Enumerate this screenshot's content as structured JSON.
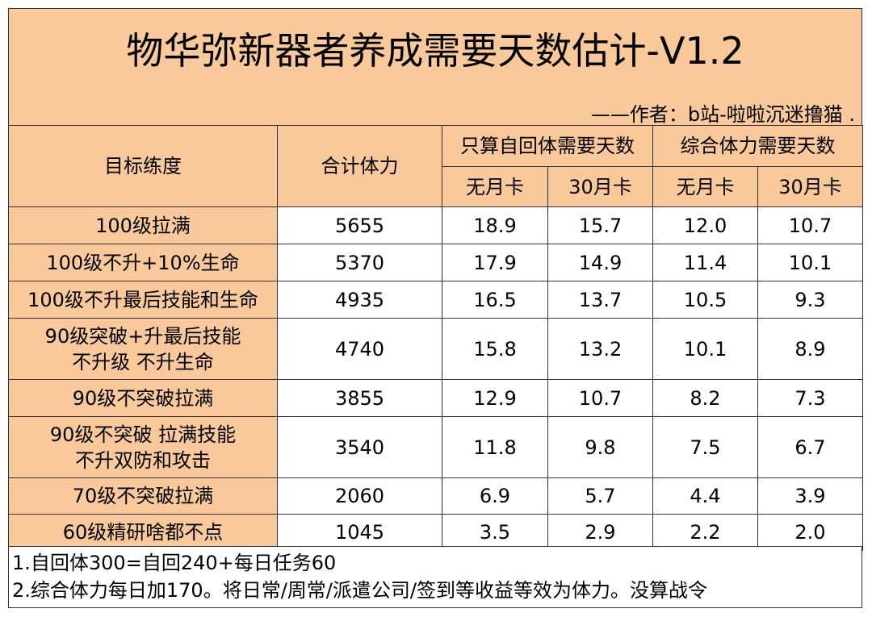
{
  "title": "物华弥新器者养成需要天数估计-V1.2",
  "author": "——作者：b站-啦啦沉迷撸猫 .",
  "colors": {
    "header_bg": "#f9c99b",
    "border": "#333333",
    "cell_bg": "#ffffff"
  },
  "header": {
    "target": "目标练度",
    "total": "合计体力",
    "group_self": "只算自回体需要天数",
    "group_combined": "综合体力需要天数",
    "no_card": "无月卡",
    "card_30": "30月卡"
  },
  "rows": [
    {
      "target": "100级拉满",
      "total": "5655",
      "self_no": "18.9",
      "self_30": "15.7",
      "comb_no": "12.0",
      "comb_30": "10.7"
    },
    {
      "target": "100级不升+10%生命",
      "total": "5370",
      "self_no": "17.9",
      "self_30": "14.9",
      "comb_no": "11.4",
      "comb_30": "10.1"
    },
    {
      "target": "100级不升最后技能和生命",
      "total": "4935",
      "self_no": "16.5",
      "self_30": "13.7",
      "comb_no": "10.5",
      "comb_30": "9.3"
    },
    {
      "target_line1": "90级突破+升最后技能",
      "target_line2": "不升级 不升生命",
      "total": "4740",
      "self_no": "15.8",
      "self_30": "13.2",
      "comb_no": "10.1",
      "comb_30": "8.9"
    },
    {
      "target": "90级不突破拉满",
      "total": "3855",
      "self_no": "12.9",
      "self_30": "10.7",
      "comb_no": "8.2",
      "comb_30": "7.3"
    },
    {
      "target_line1": "90级不突破 拉满技能",
      "target_line2": "不升双防和攻击",
      "total": "3540",
      "self_no": "11.8",
      "self_30": "9.8",
      "comb_no": "7.5",
      "comb_30": "6.7"
    },
    {
      "target": "70级不突破拉满",
      "total": "2060",
      "self_no": "6.9",
      "self_30": "5.7",
      "comb_no": "4.4",
      "comb_30": "3.9"
    },
    {
      "target": "60级精研啥都不点",
      "total": "1045",
      "self_no": "3.5",
      "self_30": "2.9",
      "comb_no": "2.2",
      "comb_30": "2.0"
    }
  ],
  "notes": [
    "1.自回体300=自回240+每日任务60",
    "2.综合体力每日加170。将日常/周常/派遣公司/签到等收益等效为体力。没算战令"
  ]
}
